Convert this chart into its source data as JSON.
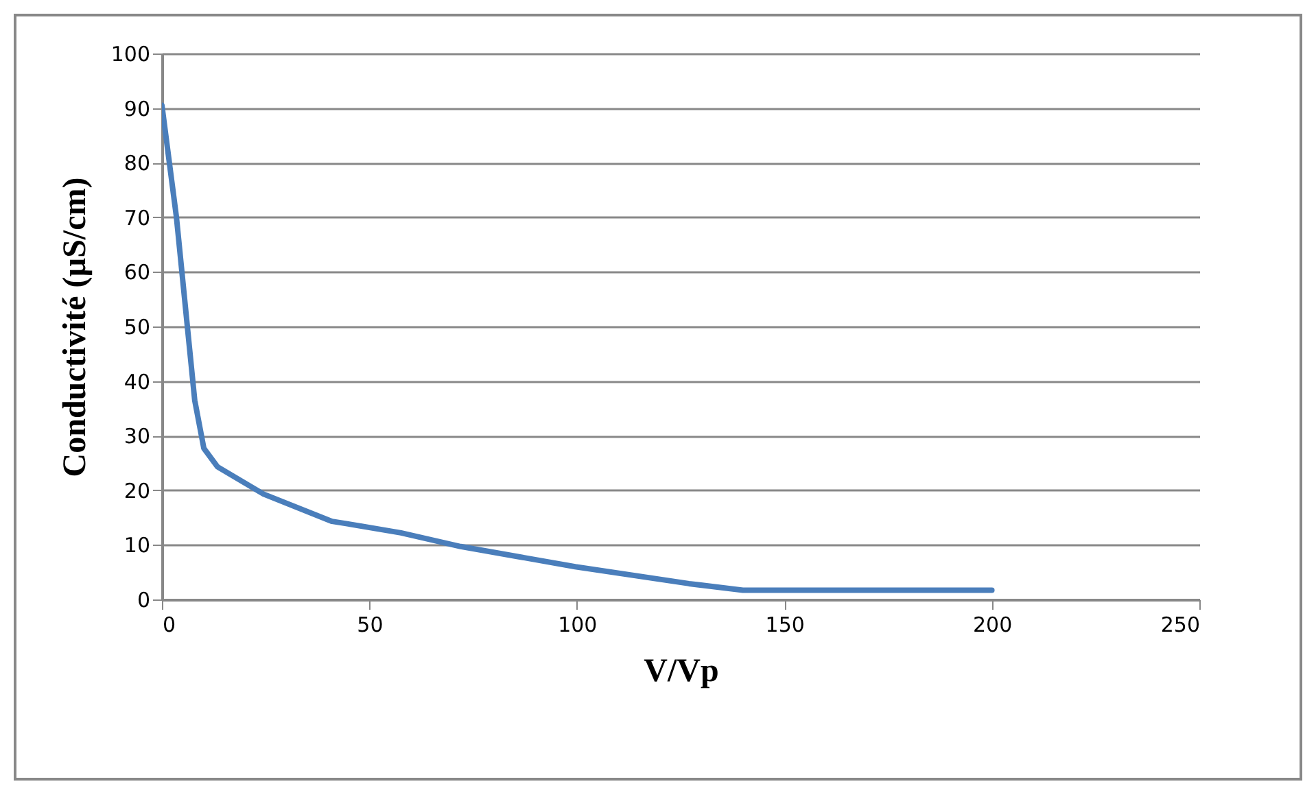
{
  "chart_data": {
    "type": "line",
    "xlabel": "V/Vp",
    "ylabel": "Conductivité (µS/cm)",
    "x": [
      0,
      3.5,
      7.9,
      10.1,
      13.4,
      24.5,
      41,
      44.4,
      57.6,
      72,
      99.6,
      127,
      140,
      160,
      200
    ],
    "series": [
      {
        "color": "#4a7ebb",
        "values": [
          90.5,
          70,
          36.5,
          27.7,
          24.3,
          19.3,
          14.3,
          13.9,
          12.2,
          9.7,
          6.0,
          2.9,
          1.7,
          1.7,
          1.7
        ]
      }
    ],
    "xlim": [
      0,
      250
    ],
    "xticks": [
      0,
      50,
      100,
      150,
      200,
      250
    ],
    "ylim": [
      0,
      100
    ],
    "yticks": [
      0,
      10,
      20,
      30,
      40,
      50,
      60,
      70,
      80,
      90,
      100
    ],
    "grid": "y",
    "legend": false,
    "marker": "none",
    "line_style": "solid"
  }
}
